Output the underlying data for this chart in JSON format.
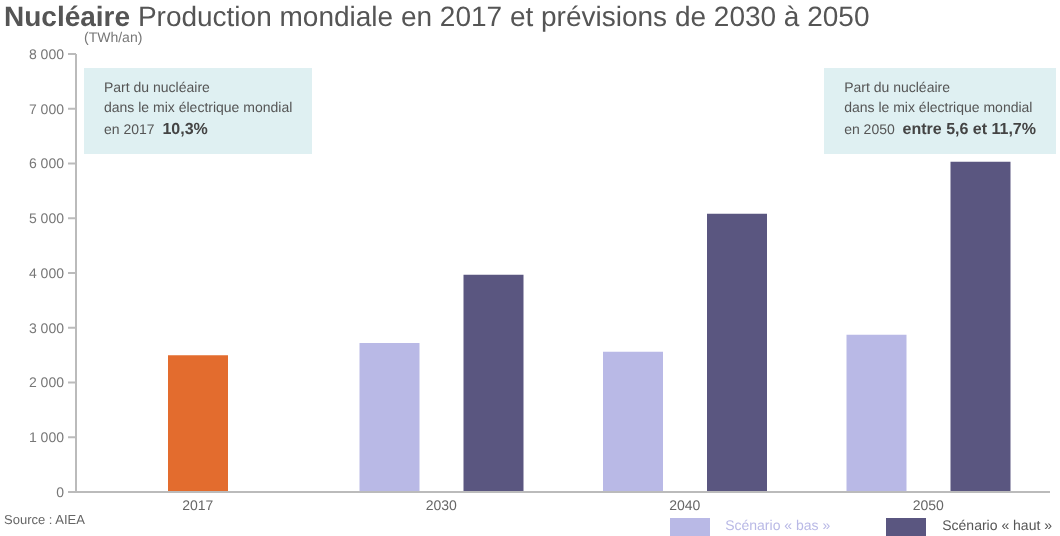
{
  "chart_data": {
    "type": "bar",
    "title": "Nucléaire",
    "subtitle": "Production mondiale en 2017 et prévisions de 2030 à 2050",
    "ylabel": "(TWh/an)",
    "categories": [
      "2017",
      "2030",
      "2040",
      "2050"
    ],
    "series": [
      {
        "color": "#e36c2e",
        "values": [
          2500,
          null,
          null,
          null
        ]
      },
      {
        "name": "Scénario « bas »",
        "color": "#b9b9e6",
        "values": [
          null,
          2720,
          2560,
          2870
        ]
      },
      {
        "name": "Scénario « haut »",
        "color": "#5a5680",
        "values": [
          null,
          3970,
          5080,
          6030
        ]
      }
    ],
    "ylim": [
      0,
      8000
    ],
    "yticks": [
      {
        "value": 0,
        "label": "0"
      },
      {
        "value": 1000,
        "label": "1 000"
      },
      {
        "value": 2000,
        "label": "2 000"
      },
      {
        "value": 3000,
        "label": "3 000"
      },
      {
        "value": 4000,
        "label": "4 000"
      },
      {
        "value": 5000,
        "label": "5 000"
      },
      {
        "value": 6000,
        "label": "6 000"
      },
      {
        "value": 7000,
        "label": "7 000"
      },
      {
        "value": 8000,
        "label": "8 000"
      }
    ],
    "grid": false,
    "legend": "bottom right",
    "annotations": [
      "Part du nucléaire\ndans le mix électrique mondial\nen 2017  10,3%",
      "Part du nucléaire\ndans le mix électrique mondial\nen 2050  entre 5,6 et 11,7%",
      "Source : AIEA"
    ]
  }
}
